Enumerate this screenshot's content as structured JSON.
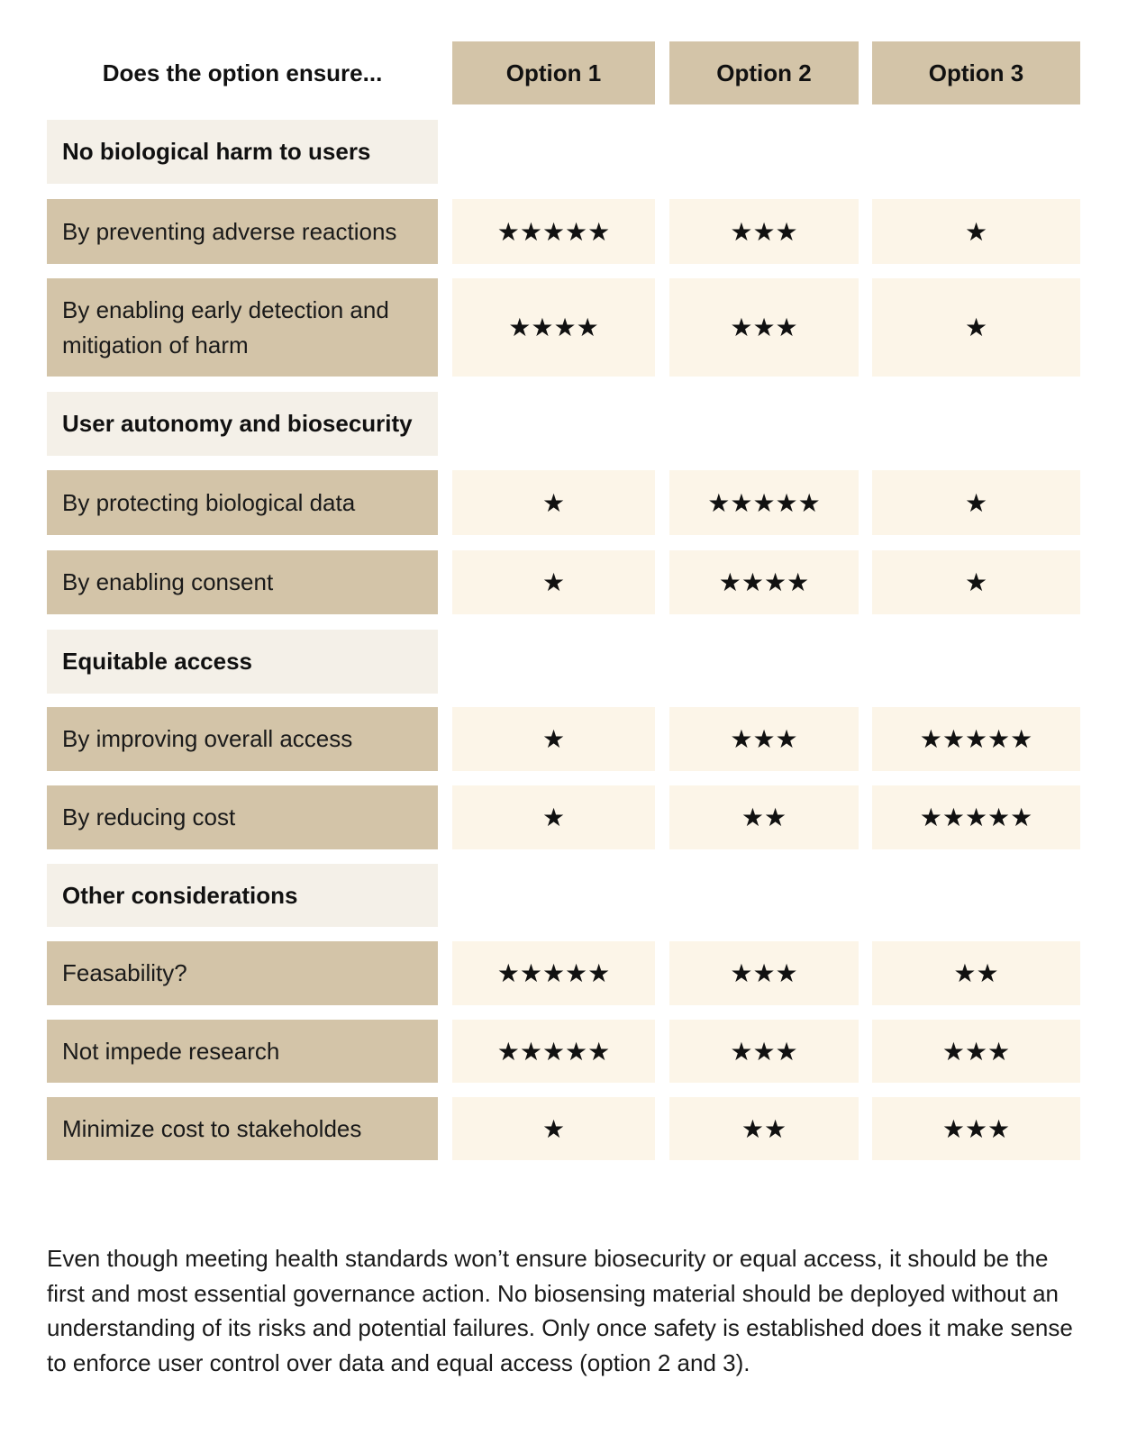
{
  "header": {
    "question": "Does the option ensure...",
    "options": [
      "Option 1",
      "Option 2",
      "Option 3"
    ]
  },
  "sections": [
    {
      "title": "No biological harm to users",
      "rows": [
        {
          "label": "By preventing adverse reactions",
          "ratings": [
            5,
            3,
            1
          ],
          "stars": [
            "★★★★★",
            "★★★",
            "★"
          ]
        },
        {
          "label": "By enabling early detection and mitigation of harm",
          "ratings": [
            4,
            3,
            1
          ],
          "stars": [
            "★★★★",
            "★★★",
            "★"
          ]
        }
      ]
    },
    {
      "title": "User autonomy and biosecurity",
      "rows": [
        {
          "label": "By protecting biological data",
          "ratings": [
            1,
            5,
            1
          ],
          "stars": [
            "★",
            "★★★★★",
            "★"
          ]
        },
        {
          "label": "By enabling consent",
          "ratings": [
            1,
            4,
            1
          ],
          "stars": [
            "★",
            "★★★★",
            "★"
          ]
        }
      ]
    },
    {
      "title": "Equitable access",
      "rows": [
        {
          "label": "By improving overall access",
          "ratings": [
            1,
            3,
            5
          ],
          "stars": [
            "★",
            "★★★",
            "★★★★★"
          ]
        },
        {
          "label": "By reducing cost",
          "ratings": [
            1,
            2,
            5
          ],
          "stars": [
            "★",
            "★★",
            "★★★★★"
          ]
        }
      ]
    },
    {
      "title": "Other considerations",
      "rows": [
        {
          "label": "Feasability?",
          "ratings": [
            5,
            3,
            2
          ],
          "stars": [
            "★★★★★",
            "★★★",
            "★★"
          ]
        },
        {
          "label": "Not impede research",
          "ratings": [
            5,
            3,
            3
          ],
          "stars": [
            "★★★★★",
            "★★★",
            "★★★"
          ]
        },
        {
          "label": "Minimize cost to stakeholdes",
          "ratings": [
            1,
            2,
            3
          ],
          "stars": [
            "★",
            "★★",
            "★★★"
          ]
        }
      ]
    }
  ],
  "note": "Even though meeting health standards won’t ensure biosecurity or equal access, it should be the first and most essential governance action. No biosensing material should be deployed without an understanding of its risks and potential failures. Only once safety is established does it make sense to enforce user control over data and equal access (option 2 and 3)."
}
